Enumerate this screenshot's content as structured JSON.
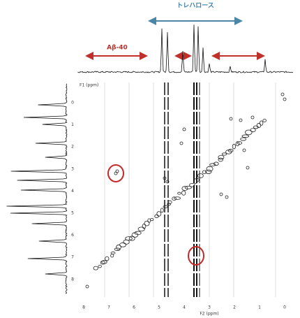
{
  "annotations": {
    "trehalose": "トレハロース",
    "abeta": "Aβ-40"
  },
  "y_axis": {
    "label": "F1\n(ppm)",
    "ticks": [
      "0",
      "1",
      "2",
      "3",
      "4",
      "5",
      "6",
      "7",
      "8"
    ]
  },
  "x_axis": {
    "label": "F2 (ppm)",
    "ticks": [
      "8",
      "7",
      "6",
      "5",
      "4",
      "3",
      "2",
      "1",
      "0"
    ]
  }
}
